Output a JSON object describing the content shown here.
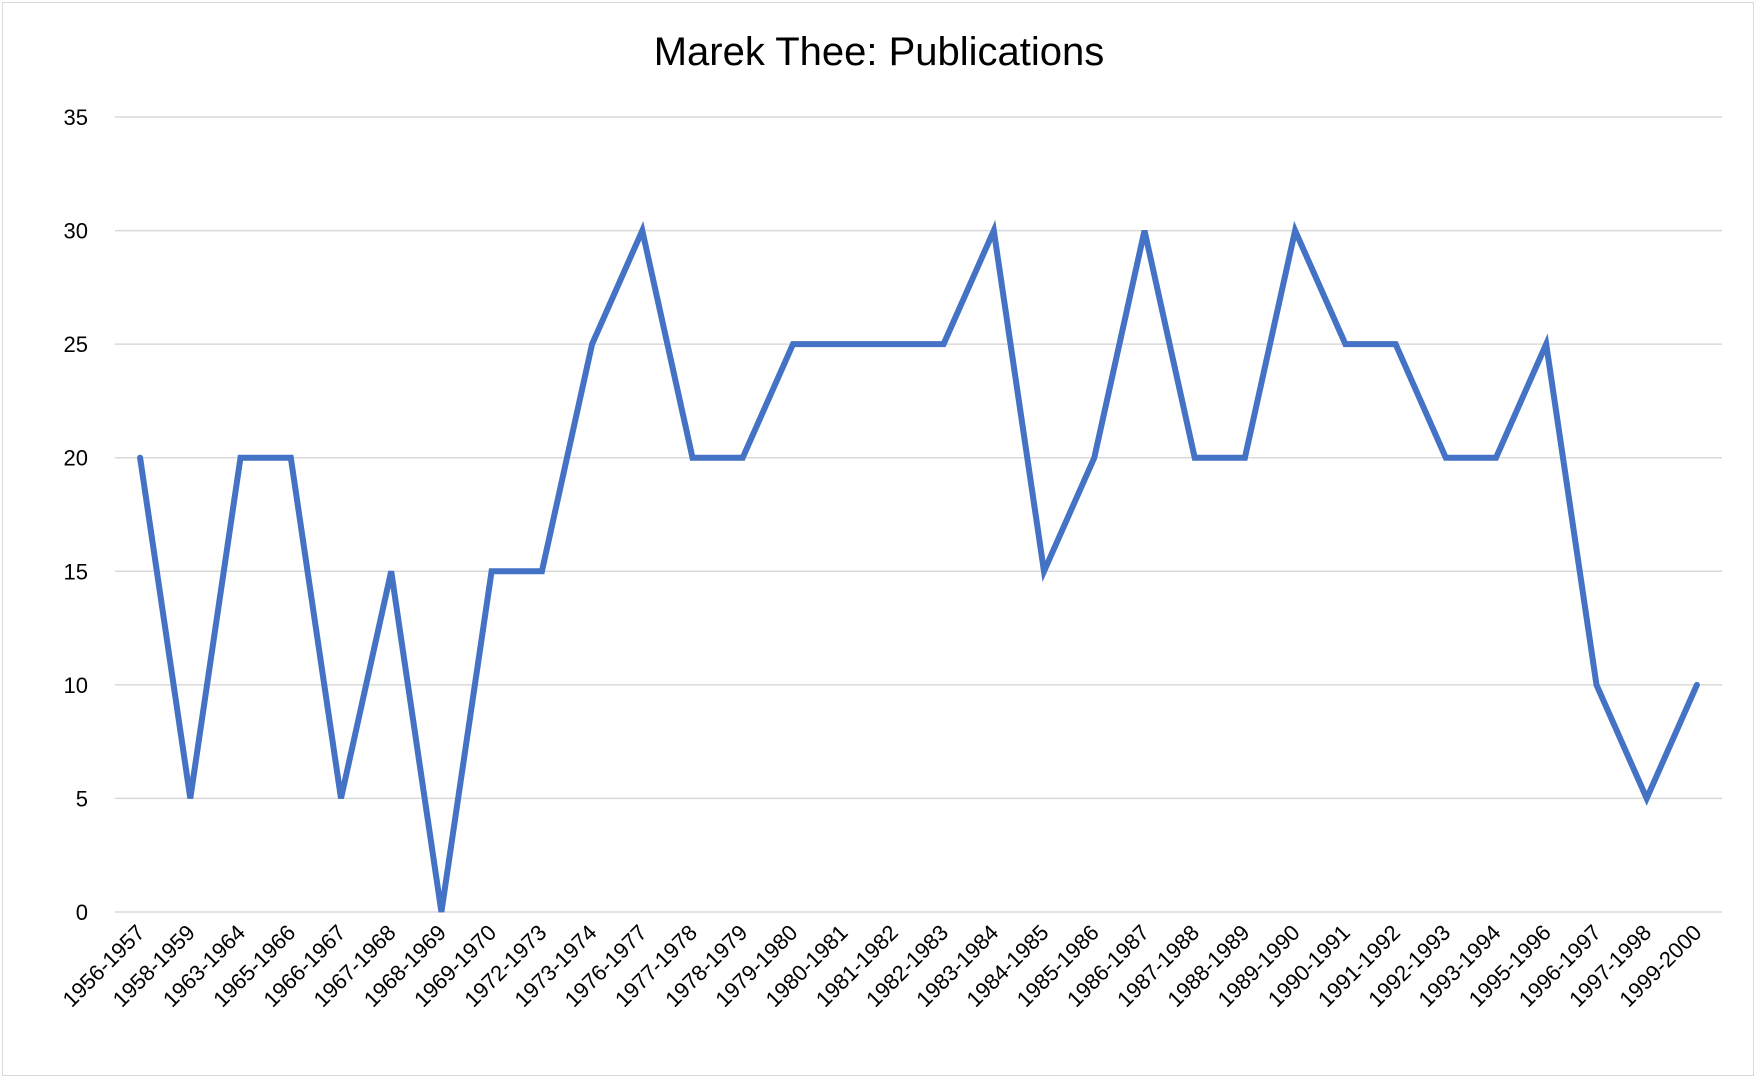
{
  "chart_data": {
    "type": "line",
    "title": "Marek Thee: Publications",
    "xlabel": "",
    "ylabel": "",
    "ylim": [
      0,
      35
    ],
    "yticks": [
      0,
      5,
      10,
      15,
      20,
      25,
      30,
      35
    ],
    "grid": true,
    "legend": "none",
    "categories": [
      "1956-1957",
      "1958-1959",
      "1963-1964",
      "1965-1966",
      "1966-1967",
      "1967-1968",
      "1968-1969",
      "1969-1970",
      "1972-1973",
      "1973-1974",
      "1976-1977",
      "1977-1978",
      "1978-1979",
      "1979-1980",
      "1980-1981",
      "1981-1982",
      "1982-1983",
      "1983-1984",
      "1984-1985",
      "1985-1986",
      "1986-1987",
      "1987-1988",
      "1988-1989",
      "1989-1990",
      "1990-1991",
      "1991-1992",
      "1992-1993",
      "1993-1994",
      "1995-1996",
      "1996-1997",
      "1997-1998",
      "1999-2000"
    ],
    "series": [
      {
        "color": "#4472c4",
        "values": [
          20,
          5,
          20,
          20,
          5,
          15,
          0,
          15,
          15,
          25,
          30,
          20,
          20,
          25,
          25,
          25,
          25,
          30,
          15,
          20,
          30,
          20,
          20,
          30,
          25,
          25,
          20,
          20,
          25,
          10,
          5,
          10
        ]
      }
    ]
  }
}
